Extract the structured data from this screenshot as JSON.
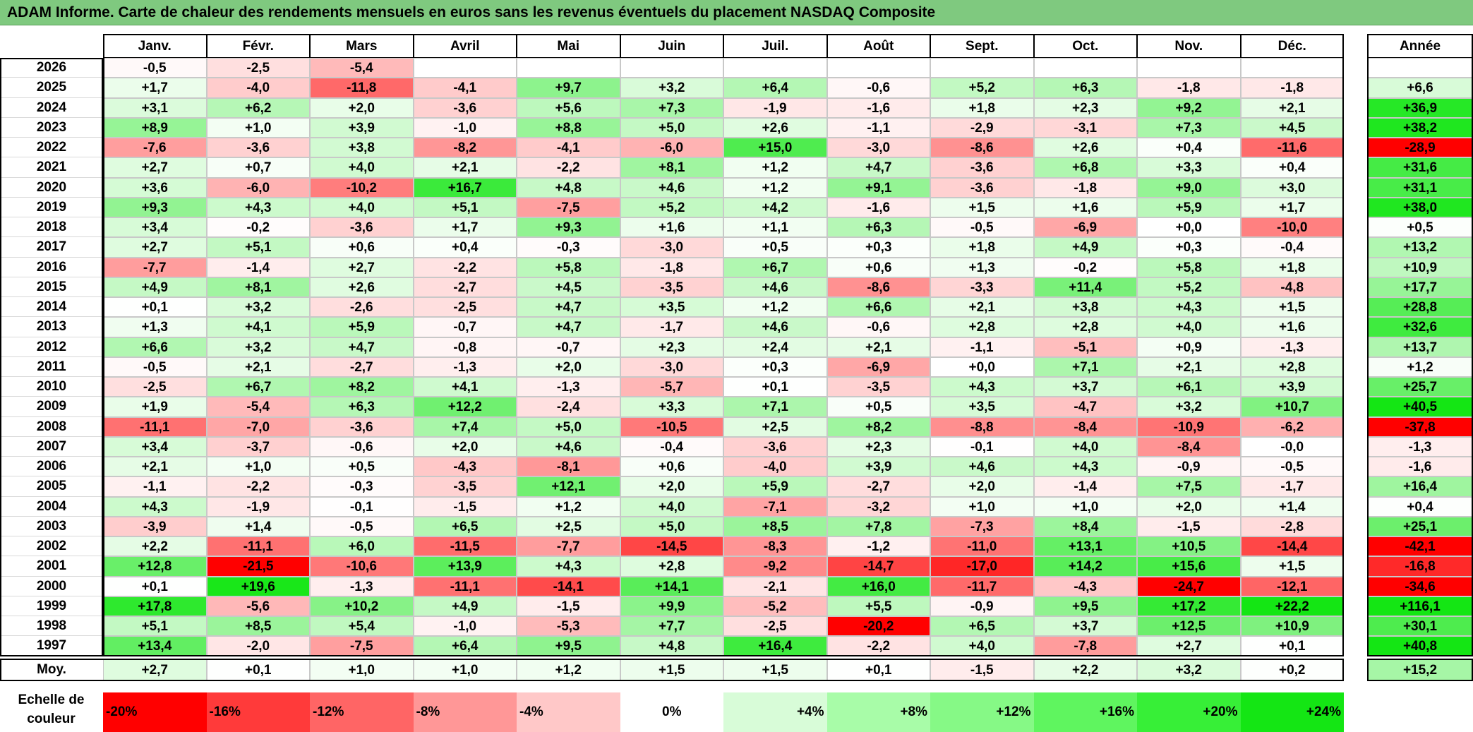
{
  "title": "ADAM Informe. Carte de chaleur des rendements mensuels en euros sans les revenus éventuels du placement NASDAQ Composite",
  "chart_data": {
    "type": "heatmap",
    "title": "ADAM Informe. Carte de chaleur des rendements mensuels en euros sans les revenus éventuels du placement NASDAQ Composite",
    "columns": [
      "Janv.",
      "Févr.",
      "Mars",
      "Avril",
      "Mai",
      "Juin",
      "Juil.",
      "Août",
      "Sept.",
      "Oct.",
      "Nov.",
      "Déc."
    ],
    "year_column": "Année",
    "rows": [
      {
        "year": "2026",
        "months": [
          "-0,5",
          "-2,5",
          "-5,4",
          "",
          "",
          "",
          "",
          "",
          "",
          "",
          "",
          ""
        ],
        "annual": ""
      },
      {
        "year": "2025",
        "months": [
          "+1,7",
          "-4,0",
          "-11,8",
          "-4,1",
          "+9,7",
          "+3,2",
          "+6,4",
          "-0,6",
          "+5,2",
          "+6,3",
          "-1,8",
          "-1,8"
        ],
        "annual": "+6,6"
      },
      {
        "year": "2024",
        "months": [
          "+3,1",
          "+6,2",
          "+2,0",
          "-3,6",
          "+5,6",
          "+7,3",
          "-1,9",
          "-1,6",
          "+1,8",
          "+2,3",
          "+9,2",
          "+2,1"
        ],
        "annual": "+36,9"
      },
      {
        "year": "2023",
        "months": [
          "+8,9",
          "+1,0",
          "+3,9",
          "-1,0",
          "+8,8",
          "+5,0",
          "+2,6",
          "-1,1",
          "-2,9",
          "-3,1",
          "+7,3",
          "+4,5"
        ],
        "annual": "+38,2"
      },
      {
        "year": "2022",
        "months": [
          "-7,6",
          "-3,6",
          "+3,8",
          "-8,2",
          "-4,1",
          "-6,0",
          "+15,0",
          "-3,0",
          "-8,6",
          "+2,6",
          "+0,4",
          "-11,6"
        ],
        "annual": "-28,9"
      },
      {
        "year": "2021",
        "months": [
          "+2,7",
          "+0,7",
          "+4,0",
          "+2,1",
          "-2,2",
          "+8,1",
          "+1,2",
          "+4,7",
          "-3,6",
          "+6,8",
          "+3,3",
          "+0,4"
        ],
        "annual": "+31,6"
      },
      {
        "year": "2020",
        "months": [
          "+3,6",
          "-6,0",
          "-10,2",
          "+16,7",
          "+4,8",
          "+4,6",
          "+1,2",
          "+9,1",
          "-3,6",
          "-1,8",
          "+9,0",
          "+3,0"
        ],
        "annual": "+31,1"
      },
      {
        "year": "2019",
        "months": [
          "+9,3",
          "+4,3",
          "+4,0",
          "+5,1",
          "-7,5",
          "+5,2",
          "+4,2",
          "-1,6",
          "+1,5",
          "+1,6",
          "+5,9",
          "+1,7"
        ],
        "annual": "+38,0"
      },
      {
        "year": "2018",
        "months": [
          "+3,4",
          "-0,2",
          "-3,6",
          "+1,7",
          "+9,3",
          "+1,6",
          "+1,1",
          "+6,3",
          "-0,5",
          "-6,9",
          "+0,0",
          "-10,0"
        ],
        "annual": "+0,5"
      },
      {
        "year": "2017",
        "months": [
          "+2,7",
          "+5,1",
          "+0,6",
          "+0,4",
          "-0,3",
          "-3,0",
          "+0,5",
          "+0,3",
          "+1,8",
          "+4,9",
          "+0,3",
          "-0,4"
        ],
        "annual": "+13,2"
      },
      {
        "year": "2016",
        "months": [
          "-7,7",
          "-1,4",
          "+2,7",
          "-2,2",
          "+5,8",
          "-1,8",
          "+6,7",
          "+0,6",
          "+1,3",
          "-0,2",
          "+5,8",
          "+1,8"
        ],
        "annual": "+10,9"
      },
      {
        "year": "2015",
        "months": [
          "+4,9",
          "+8,1",
          "+2,6",
          "-2,7",
          "+4,5",
          "-3,5",
          "+4,6",
          "-8,6",
          "-3,3",
          "+11,4",
          "+5,2",
          "-4,8"
        ],
        "annual": "+17,7"
      },
      {
        "year": "2014",
        "months": [
          "+0,1",
          "+3,2",
          "-2,6",
          "-2,5",
          "+4,7",
          "+3,5",
          "+1,2",
          "+6,6",
          "+2,1",
          "+3,8",
          "+4,3",
          "+1,5"
        ],
        "annual": "+28,8"
      },
      {
        "year": "2013",
        "months": [
          "+1,3",
          "+4,1",
          "+5,9",
          "-0,7",
          "+4,7",
          "-1,7",
          "+4,6",
          "-0,6",
          "+2,8",
          "+2,8",
          "+4,0",
          "+1,6"
        ],
        "annual": "+32,6"
      },
      {
        "year": "2012",
        "months": [
          "+6,6",
          "+3,2",
          "+4,7",
          "-0,8",
          "-0,7",
          "+2,3",
          "+2,4",
          "+2,1",
          "-1,1",
          "-5,1",
          "+0,9",
          "-1,3"
        ],
        "annual": "+13,7"
      },
      {
        "year": "2011",
        "months": [
          "-0,5",
          "+2,1",
          "-2,7",
          "-1,3",
          "+2,0",
          "-3,0",
          "+0,3",
          "-6,9",
          "+0,0",
          "+7,1",
          "+2,1",
          "+2,8"
        ],
        "annual": "+1,2"
      },
      {
        "year": "2010",
        "months": [
          "-2,5",
          "+6,7",
          "+8,2",
          "+4,1",
          "-1,3",
          "-5,7",
          "+0,1",
          "-3,5",
          "+4,3",
          "+3,7",
          "+6,1",
          "+3,9"
        ],
        "annual": "+25,7"
      },
      {
        "year": "2009",
        "months": [
          "+1,9",
          "-5,4",
          "+6,3",
          "+12,2",
          "-2,4",
          "+3,3",
          "+7,1",
          "+0,5",
          "+3,5",
          "-4,7",
          "+3,2",
          "+10,7"
        ],
        "annual": "+40,5"
      },
      {
        "year": "2008",
        "months": [
          "-11,1",
          "-7,0",
          "-3,6",
          "+7,4",
          "+5,0",
          "-10,5",
          "+2,5",
          "+8,2",
          "-8,8",
          "-8,4",
          "-10,9",
          "-6,2"
        ],
        "annual": "-37,8"
      },
      {
        "year": "2007",
        "months": [
          "+3,4",
          "-3,7",
          "-0,6",
          "+2,0",
          "+4,6",
          "-0,4",
          "-3,6",
          "+2,3",
          "-0,1",
          "+4,0",
          "-8,4",
          "-0,0"
        ],
        "annual": "-1,3"
      },
      {
        "year": "2006",
        "months": [
          "+2,1",
          "+1,0",
          "+0,5",
          "-4,3",
          "-8,1",
          "+0,6",
          "-4,0",
          "+3,9",
          "+4,6",
          "+4,3",
          "-0,9",
          "-0,5"
        ],
        "annual": "-1,6"
      },
      {
        "year": "2005",
        "months": [
          "-1,1",
          "-2,2",
          "-0,3",
          "-3,5",
          "+12,1",
          "+2,0",
          "+5,9",
          "-2,7",
          "+2,0",
          "-1,4",
          "+7,5",
          "-1,7"
        ],
        "annual": "+16,4"
      },
      {
        "year": "2004",
        "months": [
          "+4,3",
          "-1,9",
          "-0,1",
          "-1,5",
          "+1,2",
          "+4,0",
          "-7,1",
          "-3,2",
          "+1,0",
          "+1,0",
          "+2,0",
          "+1,4"
        ],
        "annual": "+0,4"
      },
      {
        "year": "2003",
        "months": [
          "-3,9",
          "+1,4",
          "-0,5",
          "+6,5",
          "+2,5",
          "+5,0",
          "+8,5",
          "+7,8",
          "-7,3",
          "+8,4",
          "-1,5",
          "-2,8"
        ],
        "annual": "+25,1"
      },
      {
        "year": "2002",
        "months": [
          "+2,2",
          "-11,1",
          "+6,0",
          "-11,5",
          "-7,7",
          "-14,5",
          "-8,3",
          "-1,2",
          "-11,0",
          "+13,1",
          "+10,5",
          "-14,4"
        ],
        "annual": "-42,1"
      },
      {
        "year": "2001",
        "months": [
          "+12,8",
          "-21,5",
          "-10,6",
          "+13,9",
          "+4,3",
          "+2,8",
          "-9,2",
          "-14,7",
          "-17,0",
          "+14,2",
          "+15,6",
          "+1,5"
        ],
        "annual": "-16,8"
      },
      {
        "year": "2000",
        "months": [
          "+0,1",
          "+19,6",
          "-1,3",
          "-11,1",
          "-14,1",
          "+14,1",
          "-2,1",
          "+16,0",
          "-11,7",
          "-4,3",
          "-24,7",
          "-12,1"
        ],
        "annual": "-34,6"
      },
      {
        "year": "1999",
        "months": [
          "+17,8",
          "-5,6",
          "+10,2",
          "+4,9",
          "-1,5",
          "+9,9",
          "-5,2",
          "+5,5",
          "-0,9",
          "+9,5",
          "+17,2",
          "+22,2"
        ],
        "annual": "+116,1"
      },
      {
        "year": "1998",
        "months": [
          "+5,1",
          "+8,5",
          "+5,4",
          "-1,0",
          "-5,3",
          "+7,7",
          "-2,5",
          "-20,2",
          "+6,5",
          "+3,7",
          "+12,5",
          "+10,9"
        ],
        "annual": "+30,1"
      },
      {
        "year": "1997",
        "months": [
          "+13,4",
          "-2,0",
          "-7,5",
          "+6,4",
          "+9,5",
          "+4,8",
          "+16,4",
          "-2,2",
          "+4,0",
          "-7,8",
          "+2,7",
          "+0,1"
        ],
        "annual": "+40,8"
      }
    ],
    "average": {
      "label": "Moy.",
      "months": [
        "+2,7",
        "+0,1",
        "+1,0",
        "+1,0",
        "+1,2",
        "+1,5",
        "+1,5",
        "+0,1",
        "-1,5",
        "+2,2",
        "+3,2",
        "+0,2"
      ],
      "annual": "+15,2"
    },
    "legend": {
      "label": "Echelle de couleur",
      "items": [
        {
          "label": "-20%",
          "value": -20,
          "color": "#ff0000"
        },
        {
          "label": "-16%",
          "value": -16,
          "color": "#ff3a3a"
        },
        {
          "label": "-12%",
          "value": -12,
          "color": "#ff6565"
        },
        {
          "label": "-8%",
          "value": -8,
          "color": "#ff9797"
        },
        {
          "label": "-4%",
          "value": -4,
          "color": "#ffc8c8"
        },
        {
          "label": "0%",
          "value": 0,
          "color": "#ffffff"
        },
        {
          "label": "+4%",
          "value": 4,
          "color": "#d8fcd8"
        },
        {
          "label": "+8%",
          "value": 8,
          "color": "#a8fca8"
        },
        {
          "label": "+12%",
          "value": 12,
          "color": "#86f986"
        },
        {
          "label": "+16%",
          "value": 16,
          "color": "#5ff55f"
        },
        {
          "label": "+20%",
          "value": 20,
          "color": "#37ef37"
        },
        {
          "label": "+24%",
          "value": 24,
          "color": "#14e614"
        }
      ]
    },
    "annual_color_scale_max": 40
  }
}
